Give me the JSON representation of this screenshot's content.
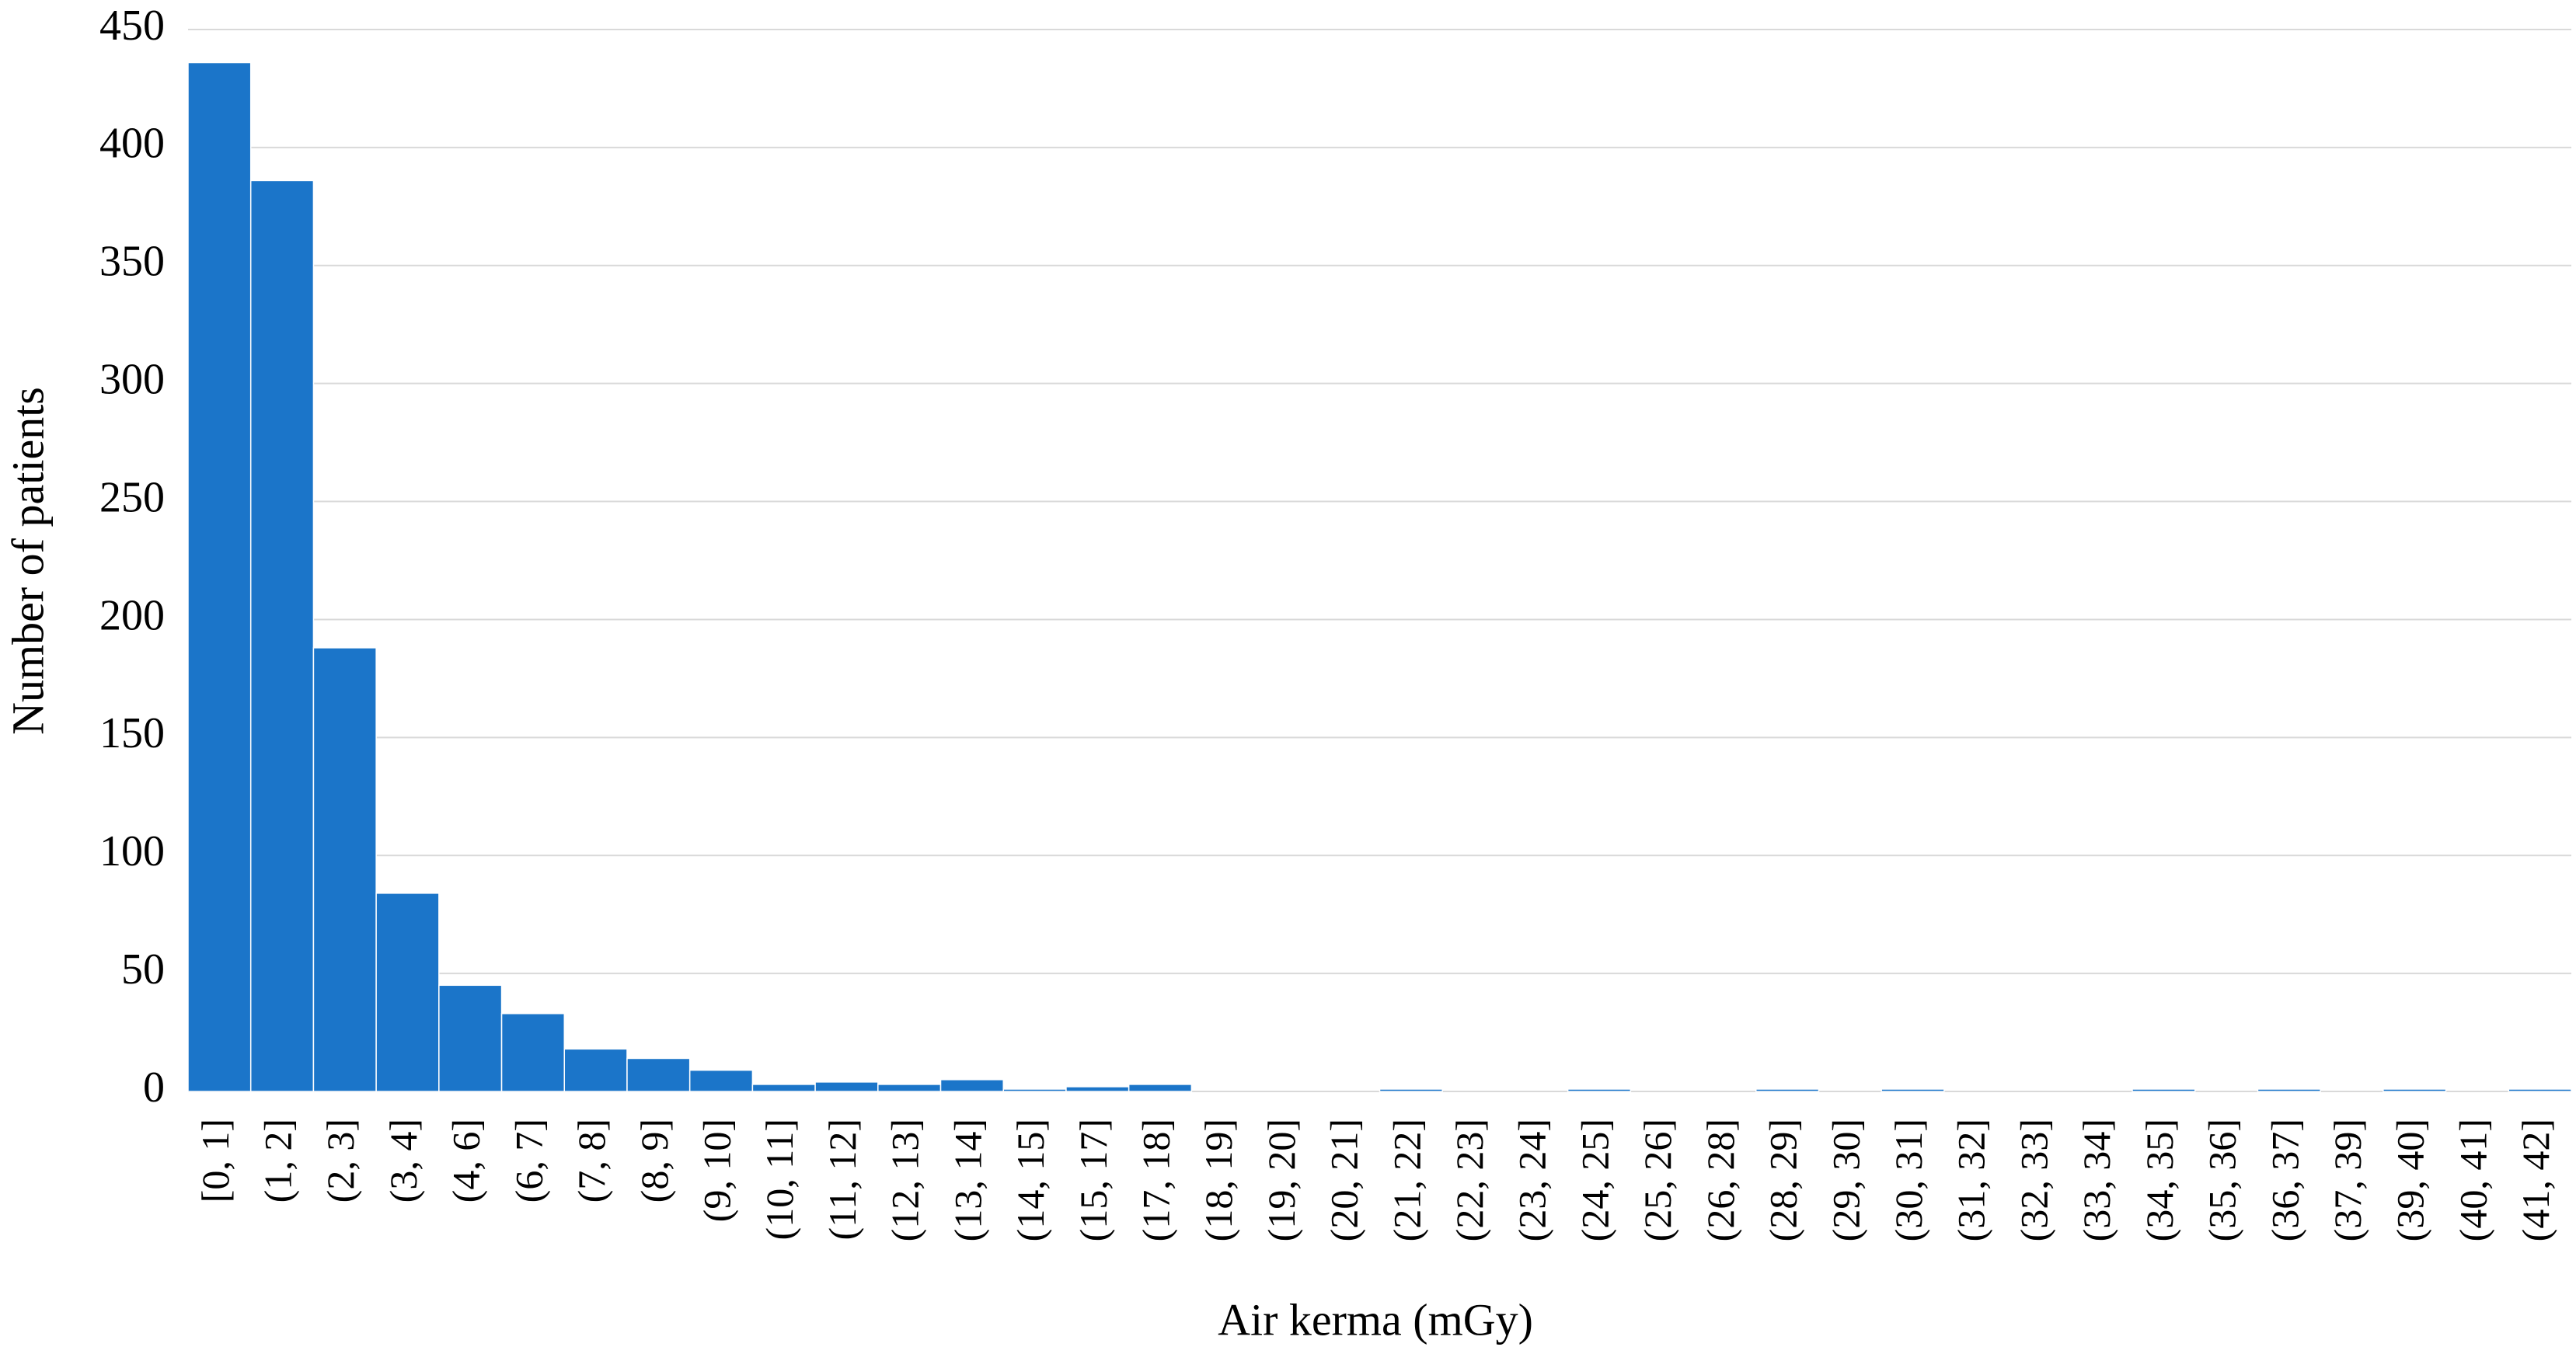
{
  "chart_data": {
    "type": "bar",
    "x_label": "Air kerma (mGy)",
    "y_label": "Number of patients",
    "categories": [
      "[0, 1]",
      "(1, 2]",
      "(2, 3]",
      "(3, 4]",
      "(4, 6]",
      "(6, 7]",
      "(7, 8]",
      "(8, 9]",
      "(9, 10]",
      "(10, 11]",
      "(11, 12]",
      "(12, 13]",
      "(13, 14]",
      "(14, 15]",
      "(15, 17]",
      "(17, 18]",
      "(18, 19]",
      "(19, 20]",
      "(20, 21]",
      "(21, 22]",
      "(22, 23]",
      "(23, 24]",
      "(24, 25]",
      "(25, 26]",
      "(26, 28]",
      "(28, 29]",
      "(29, 30]",
      "(30, 31]",
      "(31, 32]",
      "(32, 33]",
      "(33, 34]",
      "(34, 35]",
      "(35, 36]",
      "(36, 37]",
      "(37, 39]",
      "(39, 40]",
      "(40, 41]",
      "(41, 42]"
    ],
    "values": [
      436,
      386,
      188,
      84,
      45,
      33,
      18,
      14,
      9,
      3,
      4,
      3,
      5,
      1,
      2,
      3,
      0,
      0,
      0,
      1,
      0,
      0,
      1,
      0,
      0,
      1,
      0,
      1,
      0,
      0,
      0,
      1,
      0,
      1,
      0,
      1,
      0,
      1
    ],
    "color": "#1b75c9",
    "ylim": [
      0,
      450
    ],
    "yticks": [
      0,
      50,
      100,
      150,
      200,
      250,
      300,
      350,
      400,
      450
    ],
    "grid": true
  }
}
